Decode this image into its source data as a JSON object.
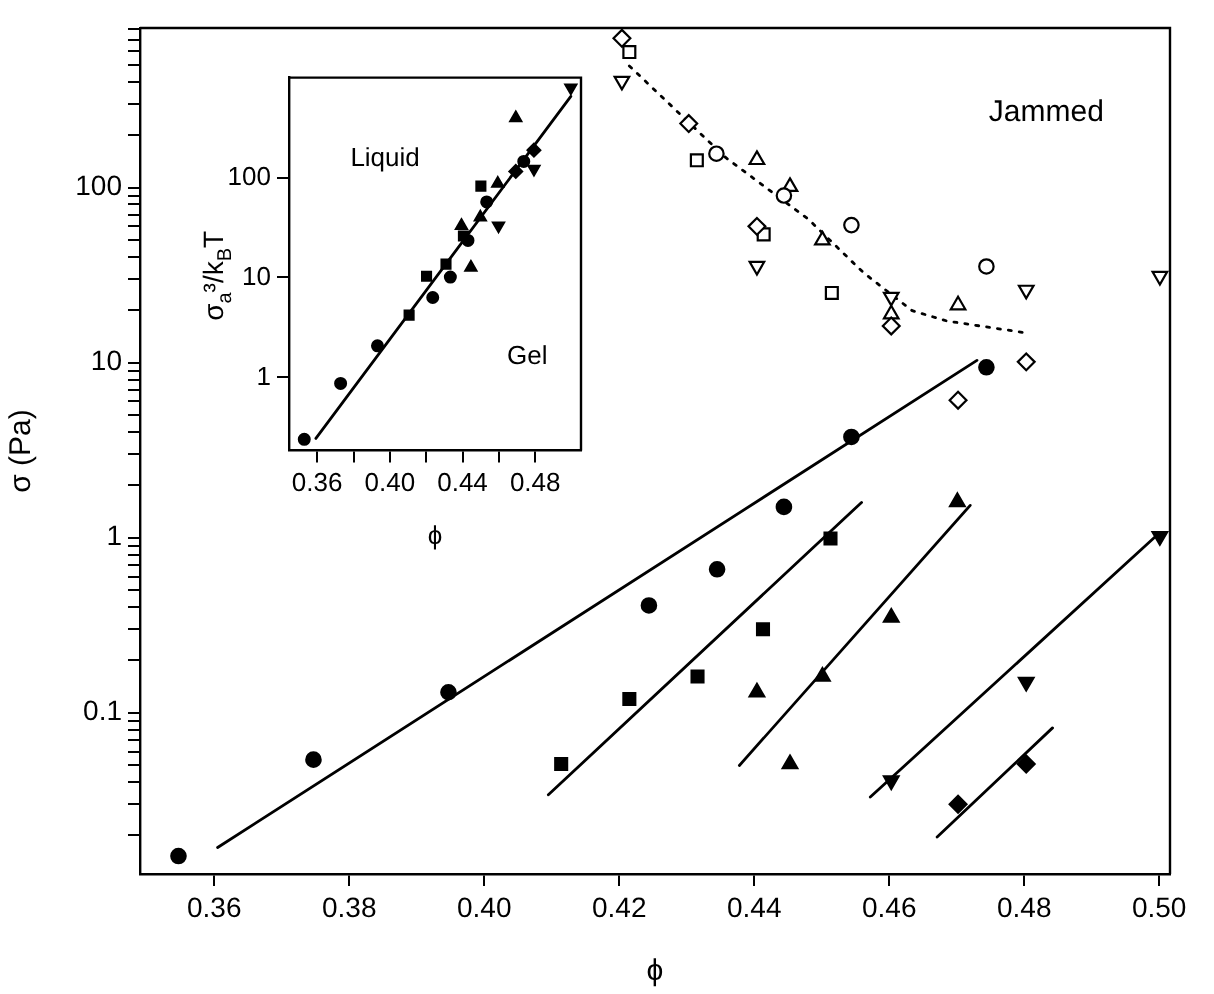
{
  "chart_data": [
    {
      "type": "scatter",
      "xlabel": "ϕ",
      "ylabel": "σ (Pa)",
      "log": "y",
      "grid": false,
      "legend": false,
      "xlim": [
        0.349,
        0.5016
      ],
      "ylim": [
        0.012,
        815
      ],
      "xticks": [
        0.36,
        0.38,
        {
          "value": 0.4,
          "label": "0.40"
        },
        0.42,
        0.44,
        0.46,
        0.48,
        {
          "value": 0.5,
          "label": "0.50"
        }
      ],
      "yticks": [
        {
          "value": 0.02,
          "label": null
        },
        {
          "value": 0.03,
          "label": null
        },
        {
          "value": 0.04,
          "label": null
        },
        {
          "value": 0.05,
          "label": null
        },
        {
          "value": 0.06,
          "label": null
        },
        {
          "value": 0.07,
          "label": null
        },
        {
          "value": 0.08,
          "label": null
        },
        {
          "value": 0.09,
          "label": null
        },
        0.1,
        {
          "value": 0.2,
          "label": null
        },
        {
          "value": 0.3,
          "label": null
        },
        {
          "value": 0.4,
          "label": null
        },
        {
          "value": 0.5,
          "label": null
        },
        {
          "value": 0.6,
          "label": null
        },
        {
          "value": 0.7,
          "label": null
        },
        {
          "value": 0.8,
          "label": null
        },
        {
          "value": 0.9,
          "label": null
        },
        1,
        {
          "value": 2,
          "label": null
        },
        {
          "value": 3,
          "label": null
        },
        {
          "value": 4,
          "label": null
        },
        {
          "value": 5,
          "label": null
        },
        {
          "value": 6,
          "label": null
        },
        {
          "value": 7,
          "label": null
        },
        {
          "value": 8,
          "label": null
        },
        {
          "value": 9,
          "label": null
        },
        10,
        {
          "value": 20,
          "label": null
        },
        {
          "value": 30,
          "label": null
        },
        {
          "value": 40,
          "label": null
        },
        {
          "value": 50,
          "label": null
        },
        {
          "value": 60,
          "label": null
        },
        {
          "value": 70,
          "label": null
        },
        {
          "value": 80,
          "label": null
        },
        {
          "value": 90,
          "label": null
        },
        100,
        {
          "value": 200,
          "label": null
        },
        {
          "value": 300,
          "label": null
        },
        {
          "value": 400,
          "label": null
        },
        {
          "value": 500,
          "label": null
        },
        {
          "value": 600,
          "label": null
        },
        {
          "value": 700,
          "label": null
        },
        {
          "value": 800,
          "label": null
        }
      ],
      "annotations": [
        "Jammed"
      ],
      "series": [
        {
          "type": "scatter",
          "marker": "circle",
          "color": "#000000",
          "x": [
            0.3547,
            0.3747,
            0.3947,
            0.4244,
            0.4345,
            0.4444,
            0.4544,
            0.4744
          ],
          "values": [
            0.0152,
            0.054,
            0.131,
            0.41,
            0.66,
            1.5,
            3.76,
            9.4
          ]
        },
        {
          "type": "line",
          "marker": "none",
          "line_style": "solid",
          "color": "#000000",
          "x": [
            0.3605,
            0.473
          ],
          "values": [
            0.017,
            10.3
          ]
        },
        {
          "type": "scatter",
          "marker": "square",
          "color": "#000000",
          "x": [
            0.4114,
            0.4215,
            0.4316,
            0.4413,
            0.4513
          ],
          "values": [
            0.051,
            0.12,
            0.161,
            0.3,
            0.99
          ]
        },
        {
          "type": "line",
          "marker": "none",
          "line_style": "solid",
          "color": "#000000",
          "x": [
            0.4095,
            0.4559
          ],
          "values": [
            0.034,
            1.59
          ]
        },
        {
          "type": "scatter",
          "marker": "triangle",
          "color": "#000000",
          "x": [
            0.4404,
            0.4453,
            0.4501,
            0.4603,
            0.4701
          ],
          "values": [
            0.131,
            0.051,
            0.161,
            0.35,
            1.6
          ]
        },
        {
          "type": "line",
          "marker": "none",
          "line_style": "solid",
          "color": "#000000",
          "x": [
            0.4378,
            0.472
          ],
          "values": [
            0.05,
            1.53
          ]
        },
        {
          "type": "scatter",
          "marker": "triangle-down",
          "color": "#000000",
          "x": [
            0.4603,
            0.4803,
            0.5001
          ],
          "values": [
            0.041,
            0.15,
            1.02
          ]
        },
        {
          "type": "line",
          "marker": "none",
          "line_style": "solid",
          "color": "#000000",
          "x": [
            0.4572,
            0.5001
          ],
          "values": [
            0.033,
            1.07
          ]
        },
        {
          "type": "scatter",
          "marker": "diamond",
          "color": "#000000",
          "x": [
            0.4702,
            0.4803
          ],
          "values": [
            0.03,
            0.051
          ]
        },
        {
          "type": "line",
          "marker": "none",
          "line_style": "solid",
          "color": "#000000",
          "x": [
            0.4671,
            0.4842
          ],
          "values": [
            0.0195,
            0.082
          ]
        },
        {
          "type": "scatter",
          "marker": "diamond",
          "color": "#ffffff",
          "x": [
            0.4204,
            0.4303,
            0.4404,
            0.4603,
            0.4702,
            0.4803
          ],
          "values": [
            712,
            232,
            60,
            16.2,
            6.1,
            10.1
          ]
        },
        {
          "type": "scatter",
          "marker": "square",
          "color": "#ffffff",
          "x": [
            0.4215,
            0.4315,
            0.4414,
            0.4515
          ],
          "values": [
            594,
            143,
            54,
            25
          ]
        },
        {
          "type": "scatter",
          "marker": "circle",
          "color": "#ffffff",
          "x": [
            0.4344,
            0.4444,
            0.4544,
            0.4744
          ],
          "values": [
            156,
            90,
            61,
            35.4
          ]
        },
        {
          "type": "scatter",
          "marker": "triangle",
          "color": "#ffffff",
          "x": [
            0.4404,
            0.4453,
            0.4501,
            0.4603,
            0.4702
          ],
          "values": [
            144,
            101,
            50,
            18.9,
            21.3
          ]
        },
        {
          "type": "scatter",
          "marker": "triangle-down",
          "color": "#ffffff",
          "x": [
            0.4204,
            0.4404,
            0.4603,
            0.4803,
            0.5001
          ],
          "values": [
            406,
            35.6,
            23.7,
            26,
            31.2
          ]
        },
        {
          "type": "line",
          "marker": "none",
          "line_style": "dotted",
          "color": "#000000",
          "x": [
            0.4215,
            0.4358,
            0.448,
            0.4562,
            0.4634,
            0.4685,
            0.4797
          ],
          "values": [
            495,
            148,
            66,
            32.6,
            19.8,
            17.3,
            14.9
          ]
        }
      ]
    },
    {
      "type": "scatter",
      "xlabel": "ϕ",
      "ylabel": "σ$_{a}$³/k$_{B}$T",
      "log": "y",
      "grid": false,
      "legend": false,
      "xlim": [
        0.3445,
        0.5052
      ],
      "ylim": [
        0.186,
        1000
      ],
      "xticks": [
        0.36,
        {
          "value": 0.38,
          "label": null
        },
        {
          "value": 0.4,
          "label": "0.40"
        },
        {
          "value": 0.42,
          "label": null
        },
        0.44,
        {
          "value": 0.46,
          "label": null
        },
        0.48
      ],
      "yticks": [
        1,
        10,
        100
      ],
      "annotations": [
        "Liquid",
        "Gel"
      ],
      "series": [
        {
          "type": "scatter",
          "marker": "circle",
          "color": "#000000",
          "x": [
            0.3529,
            0.3729,
            0.3932,
            0.4236,
            0.4333,
            0.443,
            0.4533,
            0.4737
          ],
          "values": [
            0.24,
            0.87,
            2.07,
            6.3,
            10.1,
            23.5,
            57,
            145
          ]
        },
        {
          "type": "scatter",
          "marker": "square",
          "color": "#000000",
          "x": [
            0.4106,
            0.4202,
            0.4309,
            0.4405,
            0.4501
          ],
          "values": [
            4.2,
            10.3,
            13.6,
            26,
            82
          ]
        },
        {
          "type": "scatter",
          "marker": "triangle",
          "color": "#000000",
          "x": [
            0.4394,
            0.4446,
            0.4498,
            0.4594,
            0.4693
          ],
          "values": [
            33,
            12.6,
            40,
            87,
            395
          ]
        },
        {
          "type": "scatter",
          "marker": "triangle-down",
          "color": "#000000",
          "x": [
            0.4598,
            0.4793,
            0.4996
          ],
          "values": [
            33,
            122,
            792
          ]
        },
        {
          "type": "scatter",
          "marker": "diamond",
          "color": "#000000",
          "x": [
            0.4693,
            0.4793
          ],
          "values": [
            115,
            188
          ]
        },
        {
          "type": "line",
          "marker": "none",
          "line_style": "solid",
          "color": "#000000",
          "x": [
            0.3593,
            0.4996
          ],
          "values": [
            0.245,
            648
          ]
        }
      ]
    }
  ]
}
